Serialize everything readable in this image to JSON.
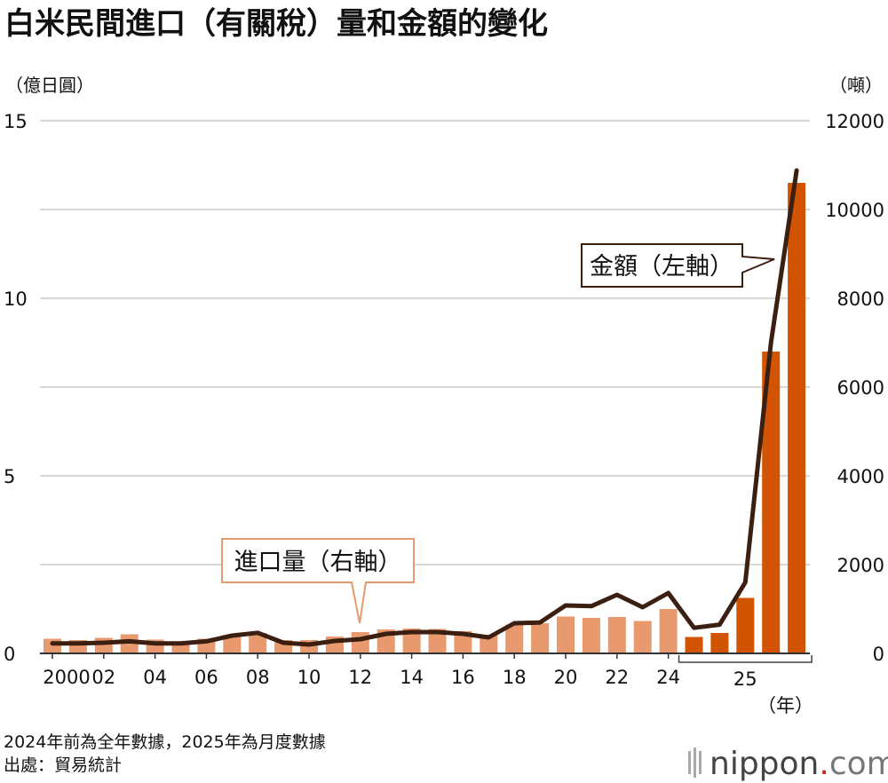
{
  "title": "白米民間進口（有關稅）量和金額的變化",
  "left_unit": "（億日圓）",
  "right_unit": "（噸）",
  "year_unit": "（年）",
  "note_line1": "2024年前為全年數據，2025年為月度數據",
  "note_line2": "出處：貿易統計",
  "logo": {
    "main": "nippon",
    "dot": ".",
    "suffix": "com"
  },
  "colors": {
    "annual_bar": "#e89a6e",
    "monthly_bar": "#d35400",
    "line": "#3b1f10",
    "grid": "#cccccc"
  },
  "chart_data": {
    "type": "bar+line",
    "categories": [
      "2000",
      "2001",
      "2002",
      "2003",
      "2004",
      "2005",
      "2006",
      "2007",
      "2008",
      "2009",
      "2010",
      "2011",
      "2012",
      "2013",
      "2014",
      "2015",
      "2016",
      "2017",
      "2018",
      "2019",
      "2020",
      "2021",
      "2022",
      "2023",
      "2024",
      "2025-1",
      "2025-2",
      "2025-3",
      "2025-4",
      "2025-5"
    ],
    "x_tick_labels": [
      "2000",
      "02",
      "04",
      "06",
      "08",
      "10",
      "12",
      "14",
      "16",
      "18",
      "20",
      "22",
      "24",
      "25"
    ],
    "series": [
      {
        "name": "進口量（右軸）",
        "kind": "bar",
        "axis": "right",
        "values": [
          330,
          300,
          350,
          430,
          310,
          260,
          330,
          420,
          460,
          300,
          300,
          380,
          480,
          540,
          560,
          550,
          500,
          420,
          650,
          680,
          830,
          800,
          820,
          730,
          1000,
          370,
          460,
          1250,
          6800,
          10600
        ]
      },
      {
        "name": "金額（左軸）",
        "kind": "line",
        "axis": "left",
        "values": [
          0.28,
          0.28,
          0.3,
          0.34,
          0.28,
          0.28,
          0.34,
          0.5,
          0.58,
          0.3,
          0.25,
          0.35,
          0.4,
          0.55,
          0.6,
          0.6,
          0.55,
          0.45,
          0.85,
          0.87,
          1.35,
          1.33,
          1.65,
          1.3,
          1.7,
          0.72,
          0.81,
          2.0,
          8.75,
          13.6
        ]
      }
    ],
    "left_axis": {
      "ylim": [
        0,
        15
      ],
      "ticks": [
        0,
        5,
        10,
        15
      ]
    },
    "right_axis": {
      "ylim": [
        0,
        12000
      ],
      "ticks": [
        0,
        2000,
        4000,
        6000,
        8000,
        10000,
        12000
      ]
    },
    "gridlines": [
      0,
      2.5,
      5,
      7.5,
      10,
      12.5,
      15
    ],
    "annotations": [
      {
        "text": "進口量（右軸）",
        "target": "2012"
      },
      {
        "text": "金額（左軸）",
        "target": "2025-5"
      }
    ]
  }
}
